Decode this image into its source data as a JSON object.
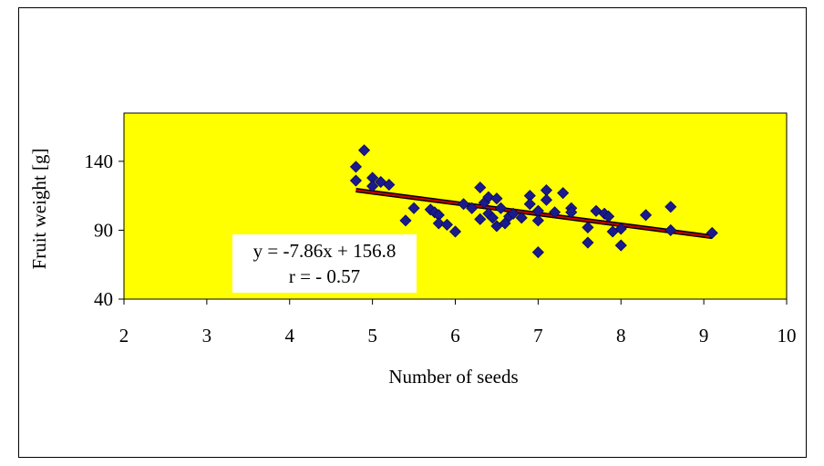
{
  "chart_data": {
    "type": "scatter",
    "title": "",
    "xlabel": "Number of seeds",
    "ylabel": "Fruit weight [g]",
    "xlim": [
      2,
      10
    ],
    "ylim": [
      40,
      175
    ],
    "xticks": [
      "2",
      "3",
      "4",
      "5",
      "6",
      "7",
      "8",
      "9",
      "10"
    ],
    "yticks": [
      "40",
      "90",
      "140"
    ],
    "plot_background": "#FFFF00",
    "marker_color": "#1A1A8C",
    "trendline_color": "#CC0000",
    "series": [
      {
        "points": [
          [
            4.8,
            136
          ],
          [
            4.8,
            126
          ],
          [
            4.9,
            148
          ],
          [
            5.0,
            128
          ],
          [
            5.0,
            122
          ],
          [
            5.1,
            125
          ],
          [
            5.2,
            123
          ],
          [
            5.4,
            97
          ],
          [
            5.5,
            106
          ],
          [
            5.7,
            105
          ],
          [
            5.75,
            103
          ],
          [
            5.8,
            101
          ],
          [
            5.8,
            95
          ],
          [
            5.9,
            94
          ],
          [
            6.0,
            89
          ],
          [
            6.1,
            109
          ],
          [
            6.2,
            106
          ],
          [
            6.3,
            121
          ],
          [
            6.3,
            98
          ],
          [
            6.35,
            110
          ],
          [
            6.4,
            114
          ],
          [
            6.4,
            102
          ],
          [
            6.45,
            99
          ],
          [
            6.5,
            113
          ],
          [
            6.5,
            93
          ],
          [
            6.55,
            106
          ],
          [
            6.6,
            95
          ],
          [
            6.65,
            100
          ],
          [
            6.7,
            102
          ],
          [
            6.8,
            99
          ],
          [
            6.9,
            115
          ],
          [
            6.9,
            109
          ],
          [
            7.0,
            104
          ],
          [
            7.0,
            97
          ],
          [
            7.0,
            74
          ],
          [
            7.1,
            119
          ],
          [
            7.1,
            112
          ],
          [
            7.2,
            103
          ],
          [
            7.3,
            117
          ],
          [
            7.4,
            106
          ],
          [
            7.4,
            103
          ],
          [
            7.6,
            92
          ],
          [
            7.6,
            81
          ],
          [
            7.7,
            104
          ],
          [
            7.8,
            102
          ],
          [
            7.85,
            100
          ],
          [
            7.9,
            89
          ],
          [
            8.0,
            91
          ],
          [
            8.0,
            79
          ],
          [
            8.3,
            101
          ],
          [
            8.6,
            107
          ],
          [
            8.6,
            90
          ],
          [
            9.1,
            88
          ]
        ]
      }
    ],
    "trendline": {
      "slope": -7.86,
      "intercept": 156.8,
      "x_range": [
        4.8,
        9.1
      ]
    },
    "annotation": {
      "line1": "y = -7.86x + 156.8",
      "line2": "r = - 0.57"
    }
  }
}
